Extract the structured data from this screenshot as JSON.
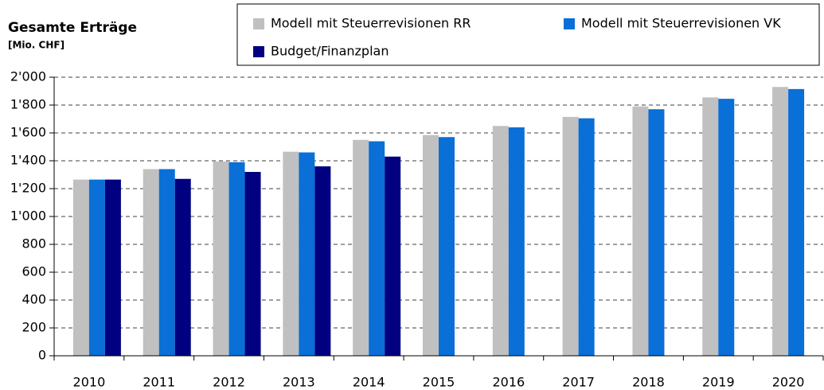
{
  "chart_data": {
    "type": "bar",
    "title": "Gesamte Erträge",
    "subtitle": "[Mio. CHF]",
    "categories": [
      "2010",
      "2011",
      "2012",
      "2013",
      "2014",
      "2015",
      "2016",
      "2017",
      "2018",
      "2019",
      "2020"
    ],
    "series": [
      {
        "name": "Modell mit Steuerrevisionen RR",
        "color": "#c0c0c0",
        "values": [
          1265,
          1340,
          1395,
          1465,
          1550,
          1585,
          1650,
          1715,
          1790,
          1855,
          1930
        ]
      },
      {
        "name": "Modell mit Steuerrevisionen VK",
        "color": "#0a6fd6",
        "values": [
          1265,
          1340,
          1390,
          1460,
          1540,
          1570,
          1640,
          1705,
          1770,
          1845,
          1915
        ]
      },
      {
        "name": "Budget/Finanzplan",
        "color": "#000080",
        "values": [
          1265,
          1270,
          1320,
          1360,
          1430,
          null,
          null,
          null,
          null,
          null,
          null
        ]
      }
    ],
    "ylim": [
      0,
      2000
    ],
    "yticks": [
      0,
      200,
      400,
      600,
      800,
      {
        "value": 1000,
        "label": "1'000"
      },
      {
        "value": 1200,
        "label": "1'200"
      },
      {
        "value": 1400,
        "label": "1'400"
      },
      {
        "value": 1600,
        "label": "1'600"
      },
      {
        "value": 1800,
        "label": "1'800"
      },
      {
        "value": 2000,
        "label": "2'000"
      }
    ],
    "grid": true
  }
}
